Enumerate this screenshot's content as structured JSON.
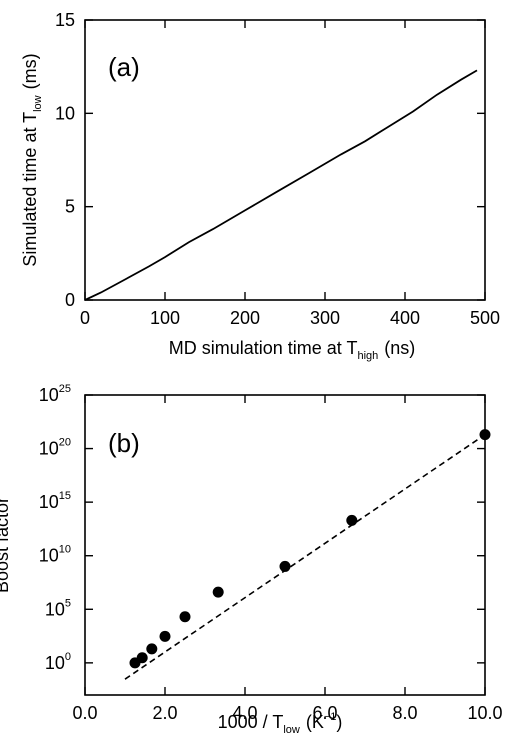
{
  "chart_data": [
    {
      "type": "line",
      "panel_label": "(a)",
      "xlabel": {
        "main": "MD simulation time at T",
        "sub": "high",
        "unit": "(ns)"
      },
      "ylabel": {
        "main": "Simulated time at T",
        "sub": "low",
        "unit": "(ms)"
      },
      "xlim": [
        0,
        500
      ],
      "ylim": [
        0,
        15
      ],
      "xticks": [
        "0",
        "100",
        "200",
        "300",
        "400",
        "500"
      ],
      "yticks": [
        "0",
        "5",
        "10",
        "15"
      ],
      "grid": false,
      "series": [
        {
          "x": [
            0,
            20,
            50,
            80,
            100,
            130,
            160,
            200,
            240,
            280,
            320,
            350,
            380,
            410,
            440,
            470,
            490
          ],
          "y": [
            0,
            0.4,
            1.1,
            1.8,
            2.3,
            3.1,
            3.8,
            4.8,
            5.8,
            6.8,
            7.8,
            8.5,
            9.3,
            10.1,
            11.0,
            11.8,
            12.3
          ]
        }
      ]
    },
    {
      "type": "scatter",
      "panel_label": "(b)",
      "xlabel": {
        "main": "1000 / T",
        "sub": "low",
        "unit": "(K",
        "unit_sup": "−1",
        "unit_end": ")"
      },
      "ylabel": {
        "main": "Boost factor"
      },
      "xlim": [
        0,
        10
      ],
      "ylim_log10": [
        -3,
        25
      ],
      "yscale": "log",
      "xticks": [
        "0.0",
        "2.0",
        "4.0",
        "6.0",
        "8.0",
        "10.0"
      ],
      "yticks": [
        {
          "base": "10",
          "exp": "0"
        },
        {
          "base": "10",
          "exp": "5"
        },
        {
          "base": "10",
          "exp": "10"
        },
        {
          "base": "10",
          "exp": "15"
        },
        {
          "base": "10",
          "exp": "20"
        },
        {
          "base": "10",
          "exp": "25"
        }
      ],
      "grid": false,
      "points": [
        {
          "x": 1.25,
          "y": 1.0
        },
        {
          "x": 1.43,
          "y": 3.0
        },
        {
          "x": 1.67,
          "y": 20.0
        },
        {
          "x": 2.0,
          "y": 300.0
        },
        {
          "x": 2.5,
          "y": 20000.0
        },
        {
          "x": 3.33,
          "y": 4000000.0
        },
        {
          "x": 5.0,
          "y": 1000000000.0
        },
        {
          "x": 6.67,
          "y": 20000000000000.0
        },
        {
          "x": 10.0,
          "y": 2e+21
        }
      ],
      "fit_line": {
        "x": [
          1.0,
          10.0
        ],
        "y": [
          0.03,
          2e+21
        ],
        "style": "dashed"
      }
    }
  ]
}
